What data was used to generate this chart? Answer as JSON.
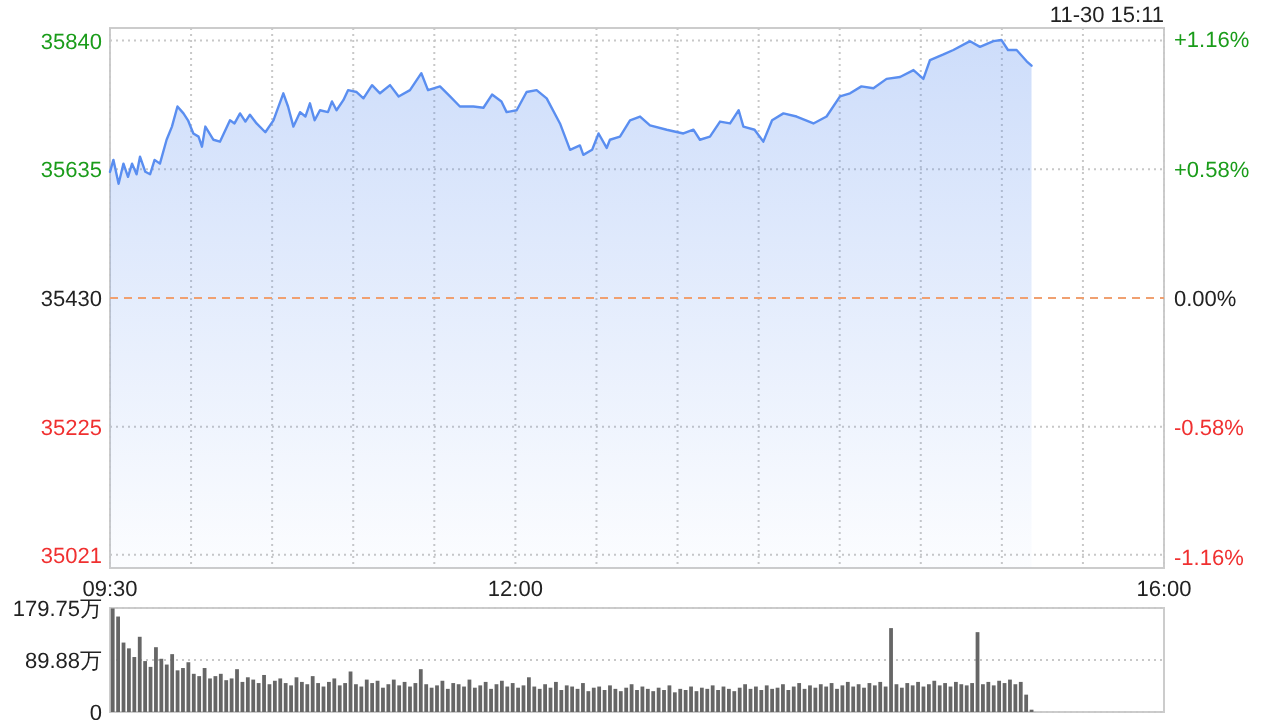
{
  "chart_data": [
    {
      "type": "area",
      "annotations": [
        "11-30 15:11"
      ],
      "x": [
        9.5,
        9.521,
        9.553,
        9.583,
        9.611,
        9.636,
        9.664,
        9.685,
        9.718,
        9.747,
        9.775,
        9.808,
        9.849,
        9.882,
        9.916,
        9.953,
        9.981,
        10.014,
        10.046,
        10.067,
        10.088,
        10.138,
        10.178,
        10.24,
        10.268,
        10.302,
        10.335,
        10.363,
        10.404,
        10.458,
        10.508,
        10.569,
        10.598,
        10.631,
        10.672,
        10.705,
        10.733,
        10.762,
        10.795,
        10.844,
        10.869,
        10.897,
        10.939,
        10.968,
        11.021,
        11.063,
        11.116,
        11.165,
        11.227,
        11.28,
        11.35,
        11.42,
        11.461,
        11.535,
        11.597,
        11.658,
        11.741,
        11.803,
        11.856,
        11.914,
        11.946,
        12.008,
        12.069,
        12.131,
        12.193,
        12.275,
        12.337,
        12.398,
        12.419,
        12.473,
        12.513,
        12.563,
        12.583,
        12.645,
        12.707,
        12.769,
        12.83,
        12.933,
        13.036,
        13.098,
        13.138,
        13.2,
        13.262,
        13.324,
        13.377,
        13.406,
        13.475,
        13.529,
        13.583,
        13.653,
        13.734,
        13.838,
        13.919,
        14.002,
        14.064,
        14.134,
        14.208,
        14.289,
        14.372,
        14.455,
        14.516,
        14.557,
        14.64,
        14.701,
        14.804,
        14.865,
        14.948,
        14.997,
        15.038,
        15.091,
        15.153,
        15.183
      ],
      "series": [
        {
          "color": "#5a8ef0",
          "values": [
            35631,
            35650,
            35612,
            35644,
            35623,
            35644,
            35627,
            35655,
            35631,
            35627,
            35650,
            35644,
            35682,
            35703,
            35735,
            35724,
            35713,
            35692,
            35687,
            35671,
            35703,
            35682,
            35679,
            35713,
            35708,
            35724,
            35711,
            35722,
            35708,
            35694,
            35713,
            35756,
            35735,
            35703,
            35726,
            35719,
            35740,
            35713,
            35729,
            35726,
            35743,
            35729,
            35745,
            35761,
            35758,
            35748,
            35769,
            35756,
            35769,
            35751,
            35761,
            35788,
            35761,
            35767,
            35751,
            35735,
            35735,
            35733,
            35754,
            35743,
            35726,
            35729,
            35758,
            35761,
            35748,
            35708,
            35666,
            35673,
            35658,
            35666,
            35692,
            35669,
            35682,
            35687,
            35713,
            35719,
            35705,
            35698,
            35692,
            35698,
            35682,
            35687,
            35711,
            35708,
            35729,
            35703,
            35698,
            35679,
            35713,
            35724,
            35719,
            35708,
            35719,
            35751,
            35756,
            35767,
            35764,
            35779,
            35782,
            35793,
            35779,
            35809,
            35818,
            35825,
            35839,
            35830,
            35839,
            35841,
            35825,
            35825,
            35807,
            35800
          ]
        }
      ],
      "xlim": [
        9.5,
        16
      ],
      "xticks": [
        {
          "value": 9.5,
          "label": "09:30"
        },
        {
          "value": 10,
          "label": null
        },
        {
          "value": 10.5,
          "label": null
        },
        {
          "value": 11,
          "label": null
        },
        {
          "value": 11.5,
          "label": null
        },
        {
          "value": 12,
          "label": "12:00"
        },
        {
          "value": 12.5,
          "label": null
        },
        {
          "value": 13,
          "label": null
        },
        {
          "value": 13.5,
          "label": null
        },
        {
          "value": 14,
          "label": null
        },
        {
          "value": 14.5,
          "label": null
        },
        {
          "value": 15,
          "label": null
        },
        {
          "value": 15.5,
          "label": null
        },
        {
          "value": 16,
          "label": "16:00"
        }
      ],
      "ylim": [
        35000,
        35860
      ],
      "yticks": [
        35021,
        35225,
        35430,
        35635,
        35840
      ],
      "y2lim": [
        -1.21,
        1.21
      ],
      "y2ticks": [
        {
          "value": 1.16,
          "label": "+1.16%"
        },
        {
          "value": 0.58,
          "label": "+0.58%"
        },
        {
          "value": 0,
          "label": "0.00%"
        },
        {
          "value": -0.58,
          "label": "-0.58%"
        },
        {
          "value": -1.16,
          "label": "-1.16%"
        }
      ],
      "ref_lines": [
        {
          "axis": "y",
          "value": 35430,
          "color": "#f0a070",
          "line_style": "dashed"
        }
      ],
      "grid": true
    },
    {
      "type": "bar",
      "categories": [
        null,
        null,
        null,
        null,
        null,
        null,
        null,
        null,
        null,
        null,
        null,
        null,
        null,
        null,
        null,
        null,
        null,
        null,
        null,
        null,
        null,
        null,
        null,
        null,
        null,
        null,
        null,
        null,
        null,
        null,
        null,
        null,
        null,
        null,
        null,
        null,
        null,
        null,
        null,
        null,
        null,
        null,
        null,
        null,
        null,
        null,
        null,
        null,
        null,
        null,
        null,
        null,
        null,
        null,
        null,
        null,
        null,
        null,
        null,
        null,
        null,
        null,
        null,
        null,
        null,
        null,
        null,
        null,
        null,
        null,
        null,
        null,
        null,
        null,
        null,
        null,
        null,
        null,
        null,
        null,
        null,
        null,
        null,
        null,
        null,
        null,
        null,
        null,
        null,
        null,
        null,
        null,
        null,
        null,
        null,
        null,
        null,
        null,
        null,
        null,
        null,
        null,
        null,
        null,
        null,
        null,
        null,
        null,
        null,
        null,
        null,
        null,
        null,
        null,
        null,
        null,
        null,
        null,
        null,
        null,
        null,
        null,
        null,
        null,
        null,
        null,
        null,
        null,
        null,
        null,
        null,
        null,
        null,
        null,
        null,
        null,
        null,
        null,
        null,
        null,
        null,
        null,
        null,
        null,
        null,
        null,
        null,
        null,
        null,
        null,
        null,
        null,
        null,
        null,
        null,
        null,
        null,
        null,
        null,
        null,
        null,
        null,
        null,
        null,
        null,
        null,
        null,
        null,
        null,
        null,
        null,
        null,
        null,
        null,
        null,
        null,
        null,
        null,
        null,
        null,
        null,
        null,
        null,
        null,
        null,
        null,
        null,
        null,
        null,
        null,
        null,
        null,
        null,
        null,
        null
      ],
      "series": [
        {
          "color": "#666666",
          "values": [
            179,
            165,
            120,
            110,
            95,
            130,
            88,
            78,
            112,
            92,
            82,
            100,
            72,
            76,
            86,
            66,
            62,
            76,
            58,
            62,
            66,
            55,
            58,
            74,
            52,
            60,
            56,
            50,
            64,
            48,
            54,
            58,
            50,
            46,
            60,
            52,
            48,
            62,
            50,
            44,
            52,
            58,
            46,
            50,
            70,
            48,
            44,
            56,
            50,
            54,
            42,
            48,
            56,
            46,
            52,
            44,
            50,
            74,
            48,
            42,
            46,
            54,
            40,
            50,
            48,
            44,
            56,
            42,
            46,
            52,
            40,
            48,
            54,
            44,
            50,
            42,
            46,
            60,
            44,
            40,
            48,
            42,
            52,
            38,
            46,
            44,
            40,
            50,
            36,
            42,
            44,
            38,
            46,
            40,
            36,
            42,
            48,
            38,
            44,
            40,
            36,
            42,
            38,
            46,
            34,
            40,
            38,
            44,
            36,
            42,
            40,
            46,
            38,
            44,
            40,
            36,
            42,
            48,
            40,
            44,
            38,
            46,
            40,
            42,
            48,
            38,
            44,
            50,
            40,
            46,
            42,
            48,
            44,
            50,
            40,
            46,
            52,
            44,
            48,
            42,
            50,
            46,
            52,
            44,
            145,
            48,
            42,
            50,
            46,
            52,
            44,
            48,
            54,
            46,
            50,
            44,
            52,
            48,
            46,
            50,
            138,
            48,
            52,
            46,
            54,
            50,
            56,
            48,
            52,
            30,
            4,
            null,
            null,
            null,
            null,
            null,
            null,
            null,
            null,
            null,
            null,
            null,
            null,
            null,
            null,
            null,
            null,
            null,
            null,
            null,
            null,
            null,
            null,
            null,
            null
          ]
        }
      ],
      "ylim": [
        0,
        179.75
      ],
      "yticks": [
        0,
        {
          "value": 89.88,
          "label": "89.88万"
        },
        {
          "value": 179.75,
          "label": "179.75万"
        }
      ],
      "grid": "y",
      "tick_labels": "y"
    }
  ]
}
